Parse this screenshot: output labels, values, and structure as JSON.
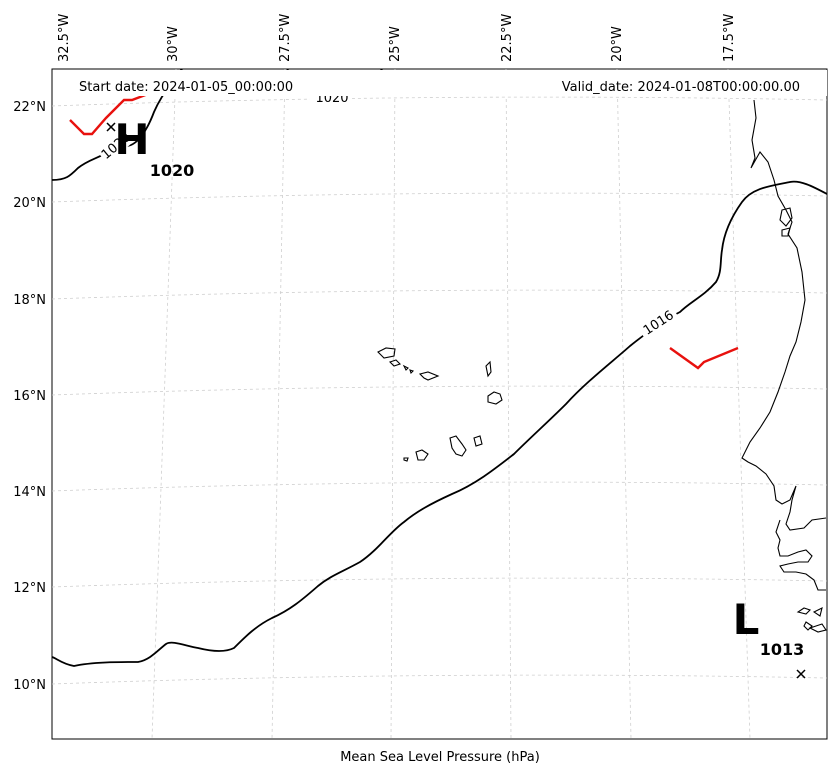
{
  "header": {
    "start_date": "Start date: 2024-01-05_00:00:00",
    "valid_date": "Valid_date: 2024-01-08T00:00:00.00"
  },
  "caption": "Mean Sea Level Pressure (hPa)",
  "lon_ticks": [
    "32.5°W",
    "30°W",
    "27.5°W",
    "25°W",
    "22.5°W",
    "20°W",
    "17.5°W"
  ],
  "lat_ticks": [
    "22°N",
    "20°N",
    "18°N",
    "16°N",
    "14°N",
    "12°N",
    "10°N"
  ],
  "isobars": [
    {
      "value": 1020,
      "labels": [
        "1020",
        "1020"
      ]
    },
    {
      "value": 1016,
      "labels": [
        "1016"
      ]
    }
  ],
  "pressure_centers": [
    {
      "type": "high",
      "letter": "H",
      "value": "1020"
    },
    {
      "type": "low",
      "letter": "L",
      "value": "1013"
    }
  ],
  "colors": {
    "isobar": "#000000",
    "front": "#e8110e",
    "coastline": "#000000",
    "grid": "#cfcfcf"
  }
}
